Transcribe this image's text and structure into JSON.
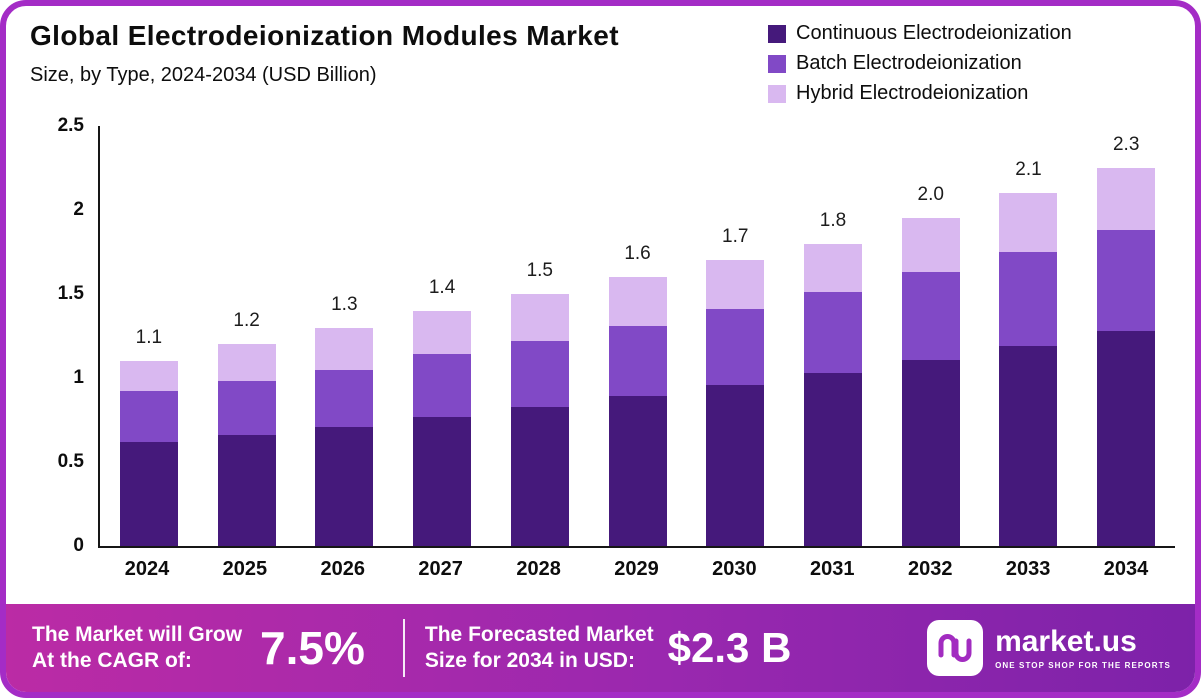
{
  "header": {
    "title": "Global Electrodeionization  Modules Market",
    "subtitle": "Size, by Type, 2024-2034 (USD Billion)"
  },
  "legend": [
    {
      "label": "Continuous Electrodeionization",
      "color": "#45197b"
    },
    {
      "label": "Batch Electrodeionization",
      "color": "#8149c6"
    },
    {
      "label": "Hybrid Electrodeionization",
      "color": "#d9b8f0"
    }
  ],
  "chart_data": {
    "type": "bar",
    "stacked": true,
    "title": "Global Electrodeionization Modules Market Size, by Type, 2024-2034 (USD Billion)",
    "categories": [
      "2024",
      "2025",
      "2026",
      "2027",
      "2028",
      "2029",
      "2030",
      "2031",
      "2032",
      "2033",
      "2034"
    ],
    "series": [
      {
        "name": "Continuous Electrodeionization",
        "color": "#45197b",
        "values": [
          0.62,
          0.66,
          0.71,
          0.77,
          0.83,
          0.89,
          0.96,
          1.03,
          1.11,
          1.19,
          1.28
        ]
      },
      {
        "name": "Batch Electrodeionization",
        "color": "#8149c6",
        "values": [
          0.3,
          0.32,
          0.34,
          0.37,
          0.39,
          0.42,
          0.45,
          0.48,
          0.52,
          0.56,
          0.6
        ]
      },
      {
        "name": "Hybrid Electrodeionization",
        "color": "#d9b8f0",
        "values": [
          0.18,
          0.22,
          0.25,
          0.26,
          0.28,
          0.29,
          0.29,
          0.29,
          0.32,
          0.35,
          0.37
        ]
      }
    ],
    "totals": [
      "1.1",
      "1.2",
      "1.3",
      "1.4",
      "1.5",
      "1.6",
      "1.7",
      "1.8",
      "2.0",
      "2.1",
      "2.3"
    ],
    "xlabel": "",
    "ylabel": "",
    "ylim": [
      0,
      2.5
    ],
    "yticks": [
      {
        "label": "0",
        "value": 0
      },
      {
        "label": "0.5",
        "value": 0.5
      },
      {
        "label": "1",
        "value": 1
      },
      {
        "label": "1.5",
        "value": 1.5
      },
      {
        "label": "2",
        "value": 2
      },
      {
        "label": "2.5",
        "value": 2.5
      }
    ],
    "grid": false,
    "legend_position": "top-right"
  },
  "footer": {
    "cagr_label_line1": "The Market will Grow",
    "cagr_label_line2": "At the CAGR of:",
    "cagr_value": "7.5%",
    "forecast_label_line1": "The Forecasted Market",
    "forecast_label_line2": "Size for 2034 in USD:",
    "forecast_value": "$2.3 B",
    "brand": "market.us",
    "brand_tagline": "ONE STOP SHOP FOR THE REPORTS"
  },
  "colors": {
    "frame_border": "#a42cc6",
    "banner_gradient_left": "#bb2ba5",
    "banner_gradient_right": "#7d22a9",
    "axis": "#161616",
    "logo_glyph": "#a22cc0"
  }
}
